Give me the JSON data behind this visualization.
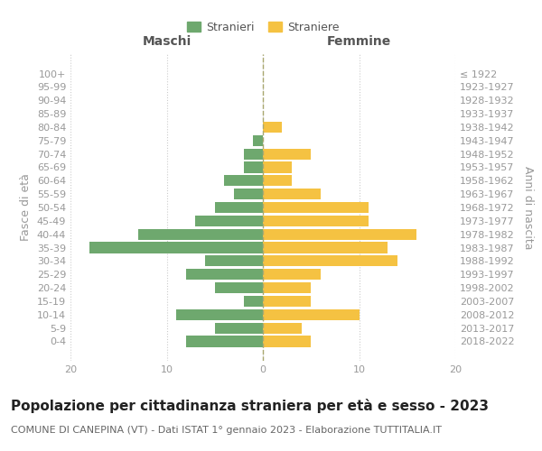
{
  "age_groups": [
    "100+",
    "95-99",
    "90-94",
    "85-89",
    "80-84",
    "75-79",
    "70-74",
    "65-69",
    "60-64",
    "55-59",
    "50-54",
    "45-49",
    "40-44",
    "35-39",
    "30-34",
    "25-29",
    "20-24",
    "15-19",
    "10-14",
    "5-9",
    "0-4"
  ],
  "birth_years": [
    "≤ 1922",
    "1923-1927",
    "1928-1932",
    "1933-1937",
    "1938-1942",
    "1943-1947",
    "1948-1952",
    "1953-1957",
    "1958-1962",
    "1963-1967",
    "1968-1972",
    "1973-1977",
    "1978-1982",
    "1983-1987",
    "1988-1992",
    "1993-1997",
    "1998-2002",
    "2003-2007",
    "2008-2012",
    "2013-2017",
    "2018-2022"
  ],
  "males": [
    0,
    0,
    0,
    0,
    0,
    1,
    2,
    2,
    4,
    3,
    5,
    7,
    13,
    18,
    6,
    8,
    5,
    2,
    9,
    5,
    8
  ],
  "females": [
    0,
    0,
    0,
    0,
    2,
    0,
    5,
    3,
    3,
    6,
    11,
    11,
    16,
    13,
    14,
    6,
    5,
    5,
    10,
    4,
    5
  ],
  "male_color": "#6ea86e",
  "female_color": "#f5c242",
  "title": "Popolazione per cittadinanza straniera per età e sesso - 2023",
  "subtitle": "COMUNE DI CANEPINA (VT) - Dati ISTAT 1° gennaio 2023 - Elaborazione TUTTITALIA.IT",
  "left_header": "Maschi",
  "right_header": "Femmine",
  "left_ylabel": "Fasce di età",
  "right_ylabel": "Anni di nascita",
  "xlim": 20,
  "legend_stranieri": "Stranieri",
  "legend_straniere": "Straniere",
  "background_color": "#ffffff",
  "grid_color": "#cccccc",
  "bar_height": 0.82,
  "title_fontsize": 11,
  "subtitle_fontsize": 8,
  "tick_label_color": "#999999",
  "header_fontsize": 10,
  "axis_label_fontsize": 9
}
